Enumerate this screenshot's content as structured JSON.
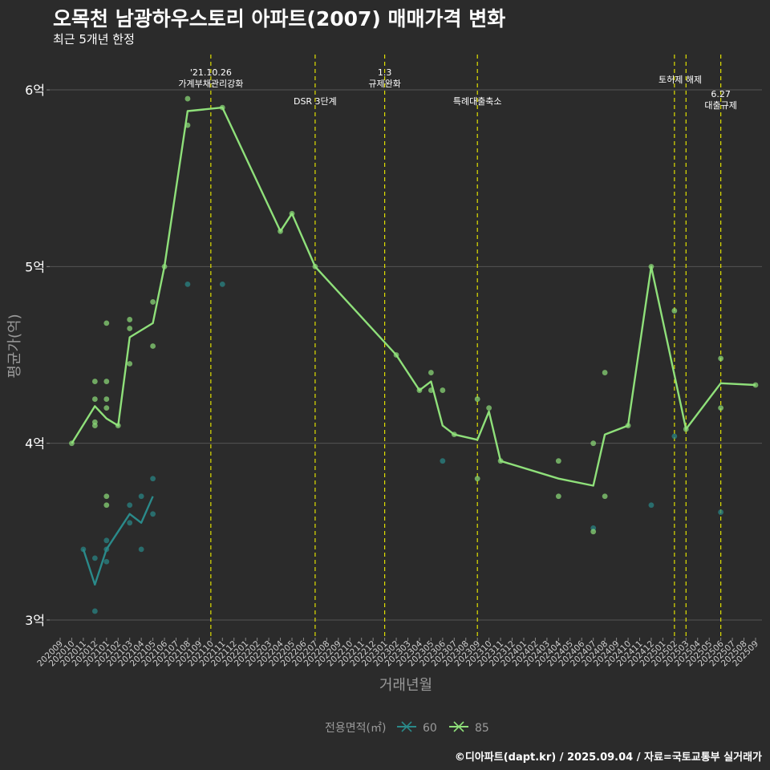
{
  "title": "오목천 남광하우스토리 아파트(2007) 매매가격 변화",
  "subtitle": "최근 5개년 한정",
  "caption": "©디아파트(dapt.kr) / 2025.09.04 / 자료=국토교통부 실거래가",
  "colors": {
    "s60": "#2a8a8a",
    "s85": "#8fe07a",
    "vline": "#e0e000",
    "grid": "#555555",
    "bg": "#2b2b2b"
  },
  "chart_data": {
    "type": "line",
    "xlabel": "거래년월",
    "ylabel": "평균가(억)",
    "ylim": [
      2.9,
      6.2
    ],
    "yticks": [
      3,
      4,
      5,
      6
    ],
    "ytick_labels": [
      "3억",
      "4억",
      "5억",
      "6억"
    ],
    "categories": [
      "202009",
      "202010",
      "202011",
      "202012",
      "202101",
      "202102",
      "202103",
      "202104",
      "202105",
      "202106",
      "202107",
      "202108",
      "202109",
      "202110",
      "202111",
      "202112",
      "202201",
      "202202",
      "202203",
      "202204",
      "202205",
      "202206",
      "202207",
      "202208",
      "202209",
      "202210",
      "202211",
      "202212",
      "202301",
      "202302",
      "202303",
      "202304",
      "202305",
      "202306",
      "202307",
      "202308",
      "202309",
      "202310",
      "202311",
      "202312",
      "202401",
      "202402",
      "202403",
      "202404",
      "202405",
      "202406",
      "202407",
      "202408",
      "202409",
      "202410",
      "202411",
      "202412",
      "202501",
      "202502",
      "202503",
      "202504",
      "202505",
      "202506",
      "202507",
      "202508",
      "202509"
    ],
    "legend": {
      "title": "전용면적(㎡)",
      "entries": [
        "60",
        "85"
      ]
    },
    "series": [
      {
        "name": "60",
        "line": [
          [
            "202011",
            3.4
          ],
          [
            "202012",
            3.2
          ],
          [
            "202101",
            3.4
          ],
          [
            "202103",
            3.6
          ],
          [
            "202104",
            3.55
          ],
          [
            "202105",
            3.7
          ]
        ],
        "points": [
          [
            "202011",
            3.4
          ],
          [
            "202012",
            3.35
          ],
          [
            "202012",
            3.05
          ],
          [
            "202101",
            3.45
          ],
          [
            "202101",
            3.4
          ],
          [
            "202101",
            3.33
          ],
          [
            "202103",
            3.65
          ],
          [
            "202103",
            3.55
          ],
          [
            "202104",
            3.7
          ],
          [
            "202104",
            3.4
          ],
          [
            "202105",
            3.8
          ],
          [
            "202105",
            3.6
          ],
          [
            "202108",
            4.9
          ],
          [
            "202111",
            4.9
          ],
          [
            "202306",
            3.9
          ],
          [
            "202407",
            3.52
          ],
          [
            "202412",
            3.65
          ],
          [
            "202502",
            4.04
          ],
          [
            "202506",
            3.61
          ]
        ]
      },
      {
        "name": "85",
        "line": [
          [
            "202010",
            4.0
          ],
          [
            "202012",
            4.21
          ],
          [
            "202101",
            4.14
          ],
          [
            "202102",
            4.1
          ],
          [
            "202103",
            4.6
          ],
          [
            "202105",
            4.68
          ],
          [
            "202106",
            5.0
          ],
          [
            "202108",
            5.88
          ],
          [
            "202111",
            5.9
          ],
          [
            "202204",
            5.2
          ],
          [
            "202205",
            5.3
          ],
          [
            "202207",
            5.0
          ],
          [
            "202302",
            4.5
          ],
          [
            "202304",
            4.3
          ],
          [
            "202305",
            4.35
          ],
          [
            "202306",
            4.1
          ],
          [
            "202307",
            4.05
          ],
          [
            "202309",
            4.02
          ],
          [
            "202310",
            4.18
          ],
          [
            "202311",
            3.9
          ],
          [
            "202404",
            3.8
          ],
          [
            "202407",
            3.76
          ],
          [
            "202408",
            4.05
          ],
          [
            "202410",
            4.1
          ],
          [
            "202412",
            5.0
          ],
          [
            "202503",
            4.08
          ],
          [
            "202506",
            4.34
          ],
          [
            "202509",
            4.33
          ]
        ],
        "points": [
          [
            "202010",
            4.0
          ],
          [
            "202012",
            4.35
          ],
          [
            "202012",
            4.25
          ],
          [
            "202012",
            4.12
          ],
          [
            "202012",
            4.1
          ],
          [
            "202101",
            4.68
          ],
          [
            "202101",
            4.35
          ],
          [
            "202101",
            4.25
          ],
          [
            "202101",
            4.2
          ],
          [
            "202101",
            3.7
          ],
          [
            "202101",
            3.65
          ],
          [
            "202102",
            4.1
          ],
          [
            "202103",
            4.7
          ],
          [
            "202103",
            4.65
          ],
          [
            "202103",
            4.45
          ],
          [
            "202105",
            4.8
          ],
          [
            "202105",
            4.55
          ],
          [
            "202106",
            5.0
          ],
          [
            "202108",
            5.95
          ],
          [
            "202108",
            5.8
          ],
          [
            "202111",
            5.9
          ],
          [
            "202204",
            5.2
          ],
          [
            "202205",
            5.3
          ],
          [
            "202207",
            5.0
          ],
          [
            "202302",
            4.5
          ],
          [
            "202304",
            4.3
          ],
          [
            "202305",
            4.4
          ],
          [
            "202305",
            4.3
          ],
          [
            "202306",
            4.3
          ],
          [
            "202307",
            4.05
          ],
          [
            "202309",
            4.25
          ],
          [
            "202309",
            3.8
          ],
          [
            "202310",
            4.2
          ],
          [
            "202311",
            3.9
          ],
          [
            "202404",
            3.9
          ],
          [
            "202404",
            3.7
          ],
          [
            "202407",
            4.0
          ],
          [
            "202407",
            3.5
          ],
          [
            "202408",
            4.4
          ],
          [
            "202408",
            3.7
          ],
          [
            "202410",
            4.1
          ],
          [
            "202412",
            5.0
          ],
          [
            "202502",
            4.75
          ],
          [
            "202503",
            4.08
          ],
          [
            "202506",
            4.48
          ],
          [
            "202506",
            4.2
          ],
          [
            "202509",
            4.33
          ]
        ]
      }
    ],
    "annotations": [
      {
        "at": "202110",
        "lines": [
          "'21.10.26",
          "가계부채관리강화"
        ],
        "row": 0
      },
      {
        "at": "202207",
        "lines": [
          "DSR 3단계"
        ],
        "row": 1
      },
      {
        "at": "202301",
        "lines": [
          "1.3",
          "규제완화"
        ],
        "row": 0
      },
      {
        "at": "202309",
        "lines": [
          "특례대출축소"
        ],
        "row": 1
      },
      {
        "at": "202502",
        "lines": [
          "토허제 해제"
        ],
        "row": 0,
        "offset_at": "202503"
      },
      {
        "at": "202503",
        "lines": [],
        "row": 0
      },
      {
        "at": "202506",
        "lines": [
          "6.27",
          "대출규제"
        ],
        "row": 1
      }
    ]
  }
}
